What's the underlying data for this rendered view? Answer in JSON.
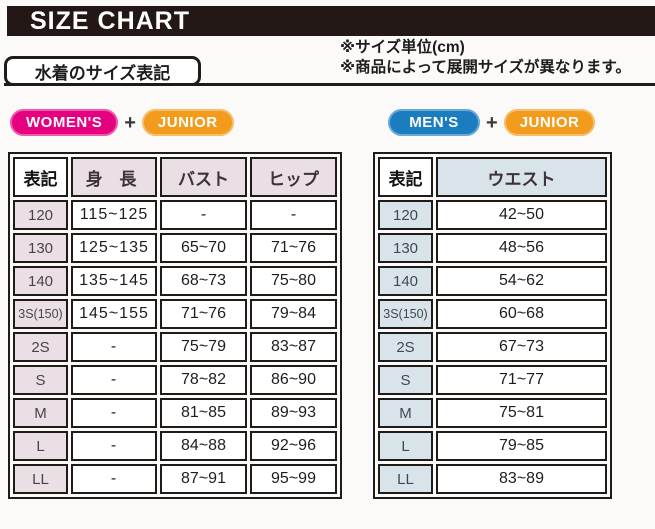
{
  "header": {
    "title": "SIZE CHART"
  },
  "section": {
    "label": "水着のサイズ表記"
  },
  "notes": {
    "unit": "※サイズ単位(cm)",
    "variation": "※商品によって展開サイズが異なります。"
  },
  "badges": {
    "womens": "WOMEN'S",
    "mens": "MEN'S",
    "junior": "JUNIOR",
    "plus": "+"
  },
  "colors": {
    "title_bar": "#231815",
    "womens_badge": "#e4007f",
    "mens_badge": "#1c7cc0",
    "junior_badge": "#f29b1d",
    "womens_cell_bg": "#e9dfe5",
    "mens_cell_bg": "#d9e4ea"
  },
  "womens_table": {
    "headers": [
      "表記",
      "身 長",
      "バスト",
      "ヒップ"
    ],
    "rows": [
      [
        "120",
        "115~125",
        "-",
        "-"
      ],
      [
        "130",
        "125~135",
        "65~70",
        "71~76"
      ],
      [
        "140",
        "135~145",
        "68~73",
        "75~80"
      ],
      [
        "3S(150)",
        "145~155",
        "71~76",
        "79~84"
      ],
      [
        "2S",
        "-",
        "75~79",
        "83~87"
      ],
      [
        "S",
        "-",
        "78~82",
        "86~90"
      ],
      [
        "M",
        "-",
        "81~85",
        "89~93"
      ],
      [
        "L",
        "-",
        "84~88",
        "92~96"
      ],
      [
        "LL",
        "-",
        "87~91",
        "95~99"
      ]
    ]
  },
  "mens_table": {
    "headers": [
      "表記",
      "ウエスト"
    ],
    "rows": [
      [
        "120",
        "42~50"
      ],
      [
        "130",
        "48~56"
      ],
      [
        "140",
        "54~62"
      ],
      [
        "3S(150)",
        "60~68"
      ],
      [
        "2S",
        "67~73"
      ],
      [
        "S",
        "71~77"
      ],
      [
        "M",
        "75~81"
      ],
      [
        "L",
        "79~85"
      ],
      [
        "LL",
        "83~89"
      ]
    ]
  }
}
